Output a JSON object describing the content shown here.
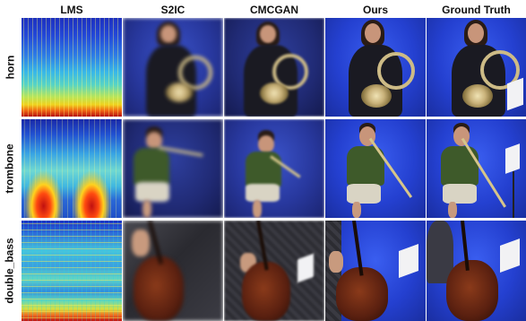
{
  "columns": [
    {
      "id": "lms",
      "label": "LMS"
    },
    {
      "id": "s2ic",
      "label": "S2IC"
    },
    {
      "id": "cmcgan",
      "label": "CMCGAN"
    },
    {
      "id": "ours",
      "label": "Ours"
    },
    {
      "id": "gt",
      "label": "Ground Truth"
    }
  ],
  "rows": [
    {
      "id": "horn",
      "label": "horn"
    },
    {
      "id": "trombone",
      "label": "trombone"
    },
    {
      "id": "double_bass",
      "label": "double_bass"
    }
  ],
  "colors": {
    "stage_blue": "#2a3aa8",
    "spectrogram_low": "#1d2fbf",
    "spectrogram_high": "#c01010"
  }
}
